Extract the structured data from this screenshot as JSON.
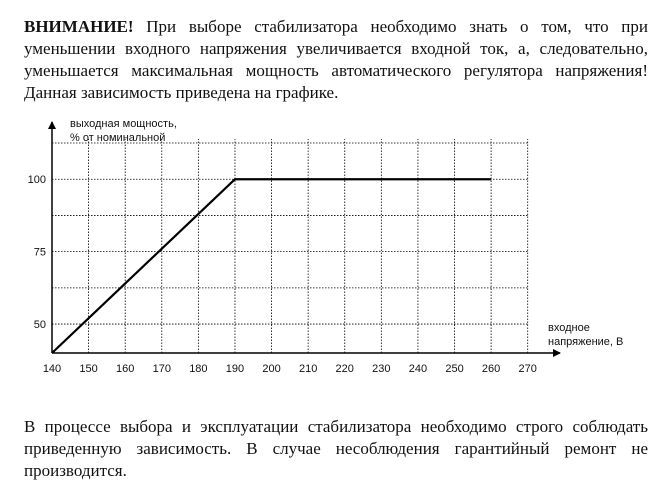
{
  "intro": {
    "warning_label": "ВНИМАНИЕ!",
    "text": " При выборе стабилизатора необходимо знать о том, что при уменьшении входного напряжения увеличивается входной ток, а, следовательно, уменьшается максимальная мощность автоматического регулятора напряжения! Данная зависимость приведена на графике."
  },
  "footer": {
    "text": "В процессе выбора и эксплуатации стабилизатора необходимо строго соблюдать приведенную зависимость. В случае несоблюдения гарантийный ремонт не производится."
  },
  "chart_data": {
    "type": "line",
    "ylabel_lines": [
      "выходная мощность,",
      "% от номинальной"
    ],
    "xlabel_lines": [
      "входное",
      "напряжение, В"
    ],
    "x_ticks": [
      140,
      150,
      160,
      170,
      180,
      190,
      200,
      210,
      220,
      230,
      240,
      250,
      260,
      270
    ],
    "y_ticks": [
      50,
      75,
      100
    ],
    "xlim": [
      140,
      275
    ],
    "ylim": [
      40,
      117
    ],
    "grid": true,
    "series": [
      {
        "x": [
          140,
          190,
          260
        ],
        "y": [
          40,
          100,
          100
        ]
      }
    ],
    "colors": {
      "line": "#000000",
      "grid": "#000000",
      "axis": "#000000"
    }
  }
}
